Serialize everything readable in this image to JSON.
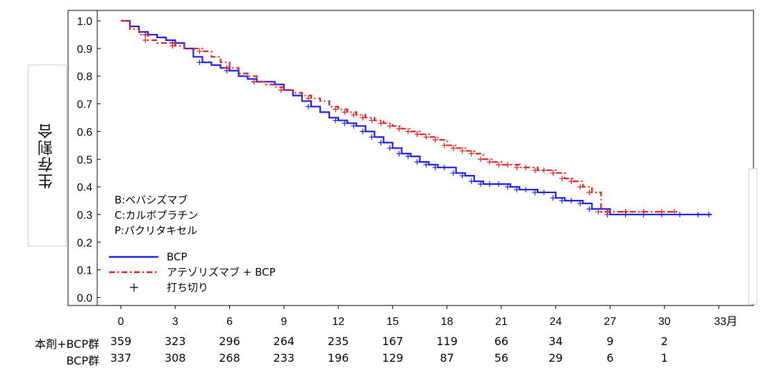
{
  "chart_data": {
    "type": "line",
    "title": "",
    "ylabel": "生存割合",
    "xlabel": "",
    "x_unit": "月",
    "xlim": [
      0,
      33
    ],
    "ylim": [
      0,
      1.0
    ],
    "xticks": [
      0,
      3,
      6,
      9,
      12,
      15,
      18,
      21,
      24,
      27,
      30,
      33
    ],
    "xtick_labels": [
      "0",
      "3",
      "6",
      "9",
      "12",
      "15",
      "18",
      "21",
      "24",
      "27",
      "30",
      "33"
    ],
    "yticks": [
      0.0,
      0.1,
      0.2,
      0.3,
      0.4,
      0.5,
      0.6,
      0.7,
      0.8,
      0.9,
      1.0
    ],
    "ytick_labels": [
      "0.0",
      "0.1",
      "0.2",
      "0.3",
      "0.4",
      "0.5",
      "0.6",
      "0.7",
      "0.8",
      "0.9",
      "1.0"
    ],
    "grid": false,
    "annotations": [
      "B:ベバシズマブ",
      "C:カルボプラチン",
      "P:パクリタキセル"
    ],
    "legend": {
      "placement": "bottom-left",
      "entries": [
        "BCP",
        "アテゾリズマブ + BCP",
        "打ち切り"
      ],
      "censor_symbol": "+"
    },
    "series": [
      {
        "name": "BCP",
        "color": "#1a1ae6",
        "style": "solid",
        "x": [
          0,
          0.5,
          1,
          1.5,
          2,
          2.5,
          3,
          3.5,
          4,
          4.5,
          5,
          5.5,
          6,
          6.5,
          7,
          7.5,
          8,
          8.5,
          9,
          9.5,
          10,
          10.5,
          11,
          11.5,
          12,
          12.5,
          13,
          13.5,
          14,
          14.5,
          15,
          15.5,
          16,
          16.5,
          17,
          17.5,
          18,
          18.5,
          19,
          19.5,
          20,
          20.5,
          21,
          21.5,
          22,
          22.5,
          23,
          23.5,
          24,
          24.5,
          25,
          25.5,
          26,
          27,
          28,
          29,
          30,
          31,
          32,
          32.6
        ],
        "y": [
          1.0,
          0.98,
          0.96,
          0.95,
          0.94,
          0.93,
          0.92,
          0.9,
          0.87,
          0.85,
          0.84,
          0.83,
          0.82,
          0.8,
          0.79,
          0.78,
          0.78,
          0.77,
          0.75,
          0.73,
          0.71,
          0.69,
          0.67,
          0.65,
          0.64,
          0.63,
          0.62,
          0.6,
          0.58,
          0.56,
          0.54,
          0.52,
          0.51,
          0.49,
          0.48,
          0.47,
          0.47,
          0.45,
          0.44,
          0.42,
          0.41,
          0.41,
          0.41,
          0.4,
          0.39,
          0.39,
          0.38,
          0.38,
          0.36,
          0.35,
          0.35,
          0.34,
          0.32,
          0.3,
          0.3,
          0.3,
          0.3,
          0.3,
          0.3,
          0.3
        ]
      },
      {
        "name": "アテゾリズマブ + BCP",
        "color": "#e61a1a",
        "style": "dashdot",
        "x": [
          0,
          0.5,
          1,
          1.5,
          2,
          2.5,
          3,
          3.5,
          4,
          4.5,
          5,
          5.5,
          6,
          6.5,
          7,
          7.5,
          8,
          8.5,
          9,
          9.5,
          10,
          10.5,
          11,
          11.5,
          12,
          12.5,
          13,
          13.5,
          14,
          14.5,
          15,
          15.5,
          16,
          16.5,
          17,
          17.5,
          18,
          18.5,
          19,
          19.5,
          20,
          20.5,
          21,
          21.5,
          22,
          22.5,
          23,
          23.5,
          24,
          24.5,
          25,
          25.5,
          26,
          26.5,
          27,
          28,
          29,
          30,
          30.7
        ],
        "y": [
          1.0,
          0.97,
          0.95,
          0.93,
          0.92,
          0.92,
          0.91,
          0.9,
          0.9,
          0.89,
          0.87,
          0.85,
          0.83,
          0.81,
          0.8,
          0.78,
          0.77,
          0.76,
          0.75,
          0.74,
          0.73,
          0.72,
          0.71,
          0.69,
          0.68,
          0.67,
          0.66,
          0.65,
          0.64,
          0.63,
          0.62,
          0.61,
          0.6,
          0.59,
          0.58,
          0.57,
          0.55,
          0.54,
          0.53,
          0.52,
          0.5,
          0.49,
          0.48,
          0.48,
          0.47,
          0.47,
          0.46,
          0.46,
          0.45,
          0.43,
          0.42,
          0.4,
          0.38,
          0.31,
          0.31,
          0.31,
          0.31,
          0.31,
          0.31
        ]
      }
    ]
  },
  "at_risk": {
    "columns": [
      0,
      3,
      6,
      9,
      12,
      15,
      18,
      21,
      24,
      27,
      30
    ],
    "rows": [
      {
        "label": "本剤+BCP群",
        "values": [
          "359",
          "323",
          "296",
          "264",
          "235",
          "167",
          "119",
          "66",
          "34",
          "9",
          "2"
        ]
      },
      {
        "label": "BCP群",
        "values": [
          "337",
          "308",
          "268",
          "233",
          "196",
          "129",
          "87",
          "56",
          "29",
          "6",
          "1"
        ]
      }
    ]
  }
}
